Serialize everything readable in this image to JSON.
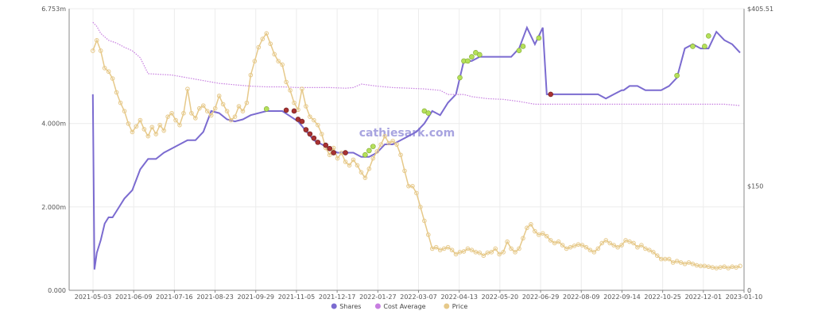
{
  "chart_data": {
    "type": "line",
    "watermark": "cathiesark.com",
    "x_ticks": [
      "2021-05-03",
      "2021-06-09",
      "2021-07-16",
      "2021-08-23",
      "2021-09-29",
      "2021-11-05",
      "2021-12-17",
      "2022-01-27",
      "2022-03-07",
      "2022-04-13",
      "2022-05-20",
      "2022-06-29",
      "2022-08-09",
      "2022-09-14",
      "2022-10-25",
      "2022-12-01",
      "2023-01-10"
    ],
    "xlim": [
      -6,
      165
    ],
    "left_axis": {
      "ylim": [
        0,
        6.753
      ],
      "ticks": [
        {
          "value": 0,
          "label": "0.000"
        },
        {
          "value": 2,
          "label": "2.000m"
        },
        {
          "value": 4,
          "label": "4.000m"
        },
        {
          "value": 6.753,
          "label": "6.753m"
        }
      ]
    },
    "right_axis": {
      "ylim": [
        0,
        405.51
      ],
      "ticks": [
        {
          "value": 0,
          "label": "0"
        },
        {
          "value": 150,
          "label": "$150"
        },
        {
          "value": 405.51,
          "label": "$405.51"
        }
      ]
    },
    "legend": {
      "placement": "bottom-center"
    },
    "series": [
      {
        "name": "Shares",
        "axis": "left",
        "color": "#7b6bd0",
        "x": [
          0,
          0.4,
          1,
          2,
          3,
          4,
          5,
          6,
          8,
          10,
          12,
          14,
          16,
          18,
          20,
          24,
          26,
          28,
          30,
          32,
          34,
          36,
          38,
          40,
          44,
          48,
          52,
          56,
          58,
          60,
          62,
          64,
          66,
          68,
          70,
          72,
          74,
          76,
          78,
          80,
          82,
          84,
          86,
          88,
          90,
          92,
          94,
          96,
          98,
          100,
          102,
          104,
          106,
          108,
          110,
          112,
          114,
          115,
          116,
          118,
          120,
          122,
          124,
          126,
          128,
          130,
          132,
          134,
          134.5,
          136,
          138,
          140,
          142,
          144,
          146,
          148,
          150,
          152,
          154,
          156,
          158,
          160,
          162,
          164
        ],
        "y": [
          4.7,
          0.5,
          0.9,
          1.2,
          1.6,
          1.75,
          1.75,
          1.9,
          2.2,
          2.4,
          2.9,
          3.15,
          3.15,
          3.3,
          3.4,
          3.6,
          3.6,
          3.8,
          4.3,
          4.25,
          4.1,
          4.05,
          4.1,
          4.2,
          4.3,
          4.3,
          4.05,
          3.6,
          3.5,
          3.4,
          3.3,
          3.3,
          3.3,
          3.2,
          3.2,
          3.3,
          3.5,
          3.5,
          3.6,
          3.7,
          3.8,
          4.0,
          4.3,
          4.2,
          4.5,
          4.7,
          5.5,
          5.5,
          5.6,
          5.6,
          5.6,
          5.6,
          5.6,
          5.8,
          6.3,
          5.9,
          6.3,
          4.7,
          4.7,
          4.7,
          4.7,
          4.7,
          4.7,
          4.7,
          4.7,
          4.6,
          4.7,
          4.8,
          4.8,
          4.9,
          4.9,
          4.8,
          4.8,
          4.8,
          4.9,
          5.1,
          5.8,
          5.9,
          5.8,
          5.8,
          6.2,
          6.0,
          5.9,
          5.7
        ]
      },
      {
        "name": "Cost Average",
        "axis": "right",
        "color": "#c77ee0",
        "x": [
          0,
          1,
          2,
          4,
          6,
          8,
          10,
          12,
          14,
          20,
          24,
          28,
          32,
          36,
          40,
          44,
          48,
          52,
          56,
          60,
          64,
          66,
          68,
          72,
          76,
          80,
          84,
          88,
          90,
          92,
          94,
          96,
          100,
          104,
          108,
          112,
          116,
          120,
          124,
          128,
          132,
          136,
          140,
          144,
          148,
          152,
          156,
          160,
          164
        ],
        "y": [
          386,
          380,
          370,
          360,
          356,
          350,
          345,
          335,
          312,
          310,
          306,
          302,
          298,
          296,
          294,
          293,
          293,
          292,
          292,
          292,
          291,
          292,
          297,
          294,
          292,
          291,
          290,
          288,
          282,
          282,
          282,
          279,
          276,
          275,
          272,
          268,
          268,
          268,
          268,
          268,
          268,
          268,
          268,
          268,
          268,
          268,
          268,
          268,
          266
        ]
      },
      {
        "name": "Price",
        "axis": "right",
        "color": "#e6c98a",
        "x": [
          0,
          1,
          2,
          3,
          4,
          5,
          6,
          7,
          8,
          9,
          10,
          11,
          12,
          13,
          14,
          15,
          16,
          17,
          18,
          19,
          20,
          21,
          22,
          23,
          24,
          25,
          26,
          27,
          28,
          29,
          30,
          31,
          32,
          33,
          34,
          35,
          36,
          37,
          38,
          39,
          40,
          41,
          42,
          43,
          44,
          45,
          46,
          47,
          48,
          49,
          50,
          51,
          52,
          53,
          54,
          55,
          56,
          57,
          58,
          59,
          60,
          61,
          62,
          63,
          64,
          65,
          66,
          67,
          68,
          69,
          70,
          71,
          72,
          73,
          74,
          75,
          76,
          77,
          78,
          79,
          80,
          81,
          82,
          83,
          84,
          85,
          86,
          87,
          88,
          89,
          90,
          91,
          92,
          93,
          94,
          95,
          96,
          97,
          98,
          99,
          100,
          101,
          102,
          103,
          104,
          105,
          106,
          107,
          108,
          109,
          110,
          111,
          112,
          113,
          114,
          115,
          116,
          117,
          118,
          119,
          120,
          121,
          122,
          123,
          124,
          125,
          126,
          127,
          128,
          129,
          130,
          131,
          132,
          133,
          134,
          135,
          136,
          137,
          138,
          139,
          140,
          141,
          142,
          143,
          144,
          145,
          146,
          147,
          148,
          149,
          150,
          151,
          152,
          153,
          154,
          155,
          156,
          157,
          158,
          159,
          160,
          161,
          162,
          163,
          164
        ],
        "y": [
          345,
          360,
          345,
          320,
          315,
          305,
          285,
          270,
          258,
          240,
          228,
          236,
          245,
          232,
          222,
          235,
          225,
          238,
          230,
          250,
          255,
          245,
          238,
          255,
          290,
          255,
          248,
          262,
          266,
          258,
          252,
          262,
          280,
          268,
          258,
          245,
          250,
          265,
          258,
          270,
          310,
          330,
          350,
          362,
          370,
          355,
          340,
          330,
          325,
          300,
          288,
          270,
          260,
          290,
          265,
          250,
          245,
          238,
          225,
          205,
          195,
          205,
          190,
          198,
          185,
          180,
          188,
          180,
          170,
          162,
          175,
          190,
          200,
          210,
          222,
          212,
          215,
          210,
          195,
          172,
          150,
          150,
          140,
          120,
          100,
          80,
          60,
          62,
          58,
          60,
          62,
          58,
          52,
          55,
          56,
          60,
          58,
          55,
          54,
          50,
          54,
          55,
          60,
          52,
          55,
          70,
          60,
          55,
          60,
          75,
          90,
          95,
          85,
          80,
          82,
          78,
          72,
          68,
          70,
          65,
          60,
          62,
          64,
          66,
          65,
          62,
          58,
          55,
          60,
          68,
          72,
          68,
          65,
          62,
          65,
          72,
          70,
          68,
          62,
          65,
          60,
          58,
          55,
          50,
          45,
          45,
          45,
          40,
          42,
          40,
          38,
          40,
          38,
          36,
          35,
          35,
          34,
          33,
          32,
          33,
          34,
          32,
          34,
          33,
          35
        ]
      }
    ],
    "markers": {
      "buy_color": "#b5e05a",
      "sell_color": "#a83232",
      "buys": [
        [
          44,
          4.35
        ],
        [
          69,
          3.25
        ],
        [
          70,
          3.35
        ],
        [
          71,
          3.45
        ],
        [
          84,
          4.3
        ],
        [
          85,
          4.25
        ],
        [
          93,
          5.1
        ],
        [
          94,
          5.5
        ],
        [
          95,
          5.5
        ],
        [
          96,
          5.6
        ],
        [
          97,
          5.7
        ],
        [
          98,
          5.65
        ],
        [
          108,
          5.75
        ],
        [
          109,
          5.85
        ],
        [
          113,
          6.05
        ],
        [
          148,
          5.15
        ],
        [
          152,
          5.85
        ],
        [
          155,
          5.85
        ],
        [
          156,
          6.1
        ]
      ],
      "sells": [
        [
          49,
          4.32
        ],
        [
          51,
          4.3
        ],
        [
          52,
          4.1
        ],
        [
          53,
          4.05
        ],
        [
          54,
          3.85
        ],
        [
          55,
          3.75
        ],
        [
          56,
          3.65
        ],
        [
          57,
          3.55
        ],
        [
          59,
          3.48
        ],
        [
          60,
          3.4
        ],
        [
          61,
          3.3
        ],
        [
          64,
          3.3
        ],
        [
          116,
          4.7
        ]
      ]
    }
  }
}
